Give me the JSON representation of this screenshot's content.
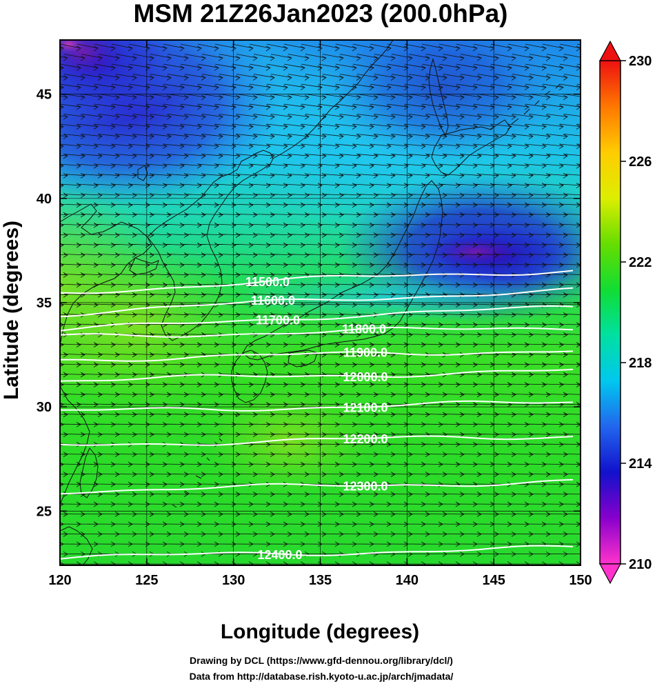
{
  "title": "MSM 21Z26Jan2023 (200.0hPa)",
  "xlabel": "Longitude (degrees)",
  "ylabel": "Latitude  (degrees)",
  "credits": [
    "Drawing by DCL (https://www.gfd-dennou.org/library/dcl/)",
    "Data from http://database.rish.kyoto-u.ac.jp/arch/jmadata/"
  ],
  "map_extent": {
    "lon": [
      120,
      150
    ],
    "lat": [
      22.4,
      47.6
    ]
  },
  "x_ticks": [
    "120",
    "125",
    "130",
    "135",
    "140",
    "145",
    "150"
  ],
  "y_ticks": [
    "25",
    "30",
    "35",
    "40",
    "45"
  ],
  "colorbar": {
    "range": [
      210,
      230
    ],
    "ticks": [
      "210",
      "214",
      "218",
      "222",
      "226",
      "230"
    ],
    "colors": [
      "#ff33cc",
      "#8800cc",
      "#1111cc",
      "#2266ee",
      "#00c8ee",
      "#00e0a0",
      "#11dd33",
      "#66dd00",
      "#ddee00",
      "#ffcc00",
      "#ff7700",
      "#ee1111"
    ]
  },
  "contours": [
    {
      "label": "11500.0",
      "lat": 36.2
    },
    {
      "label": "11600.0",
      "lat": 35.2
    },
    {
      "label": "11700.0",
      "lat": 34.4
    },
    {
      "label": "11800.0",
      "lat": 33.6
    },
    {
      "label": "11900.0",
      "lat": 32.5
    },
    {
      "label": "12000.0",
      "lat": 31.5
    },
    {
      "label": "12100.0",
      "lat": 30.0
    },
    {
      "label": "12200.0",
      "lat": 28.4
    },
    {
      "label": "12300.0",
      "lat": 26.2
    },
    {
      "label": "12400.0",
      "lat": 23.0
    }
  ]
}
